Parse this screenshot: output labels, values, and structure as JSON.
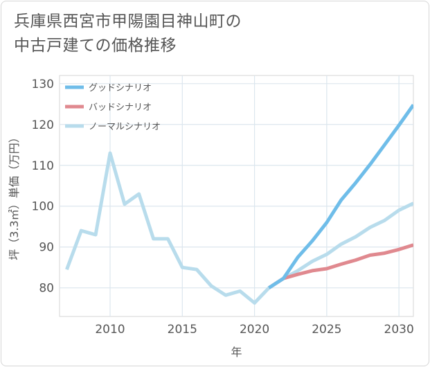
{
  "title_lines": [
    "兵庫県西宮市甲陽園目神山町の",
    "中古戸建ての価格推移"
  ],
  "chart_data": {
    "type": "line",
    "xlabel": "年",
    "ylabel": "坪（3.3㎡）単価（万円）",
    "xlim": [
      2006.5,
      2031
    ],
    "ylim": [
      73,
      132
    ],
    "x_ticks": [
      2010,
      2015,
      2020,
      2025,
      2030
    ],
    "y_ticks": [
      80,
      90,
      100,
      110,
      120,
      130
    ],
    "grid": true,
    "legend_position": "top-left",
    "series": [
      {
        "name": "グッドシナリオ",
        "color": "#6fbde9",
        "x": [
          2021,
          2022,
          2023,
          2024,
          2025,
          2026,
          2027,
          2028,
          2029,
          2030,
          2031
        ],
        "y": [
          80,
          82.3,
          87.5,
          91.5,
          96,
          101.5,
          105.7,
          110.2,
          115,
          119.8,
          124.8
        ]
      },
      {
        "name": "バッドシナリオ",
        "color": "#e0898f",
        "x": [
          2021,
          2022,
          2023,
          2024,
          2025,
          2026,
          2027,
          2028,
          2029,
          2030,
          2031
        ],
        "y": [
          80,
          82.3,
          83.3,
          84.2,
          84.7,
          85.8,
          86.8,
          88,
          88.5,
          89.4,
          90.5
        ]
      },
      {
        "name": "ノーマルシナリオ",
        "color": "#b8dcec",
        "x": [
          2007,
          2008,
          2009,
          2010,
          2011,
          2012,
          2013,
          2014,
          2015,
          2016,
          2017,
          2018,
          2019,
          2020,
          2021,
          2022,
          2023,
          2024,
          2025,
          2026,
          2027,
          2028,
          2029,
          2030,
          2031
        ],
        "y": [
          84.5,
          94,
          93,
          113,
          100.5,
          103,
          92,
          92,
          85,
          84.5,
          80.5,
          78.2,
          79.2,
          76.3,
          80,
          82.3,
          84.2,
          86.5,
          88.2,
          90.7,
          92.5,
          94.8,
          96.5,
          99,
          100.7
        ]
      }
    ]
  }
}
